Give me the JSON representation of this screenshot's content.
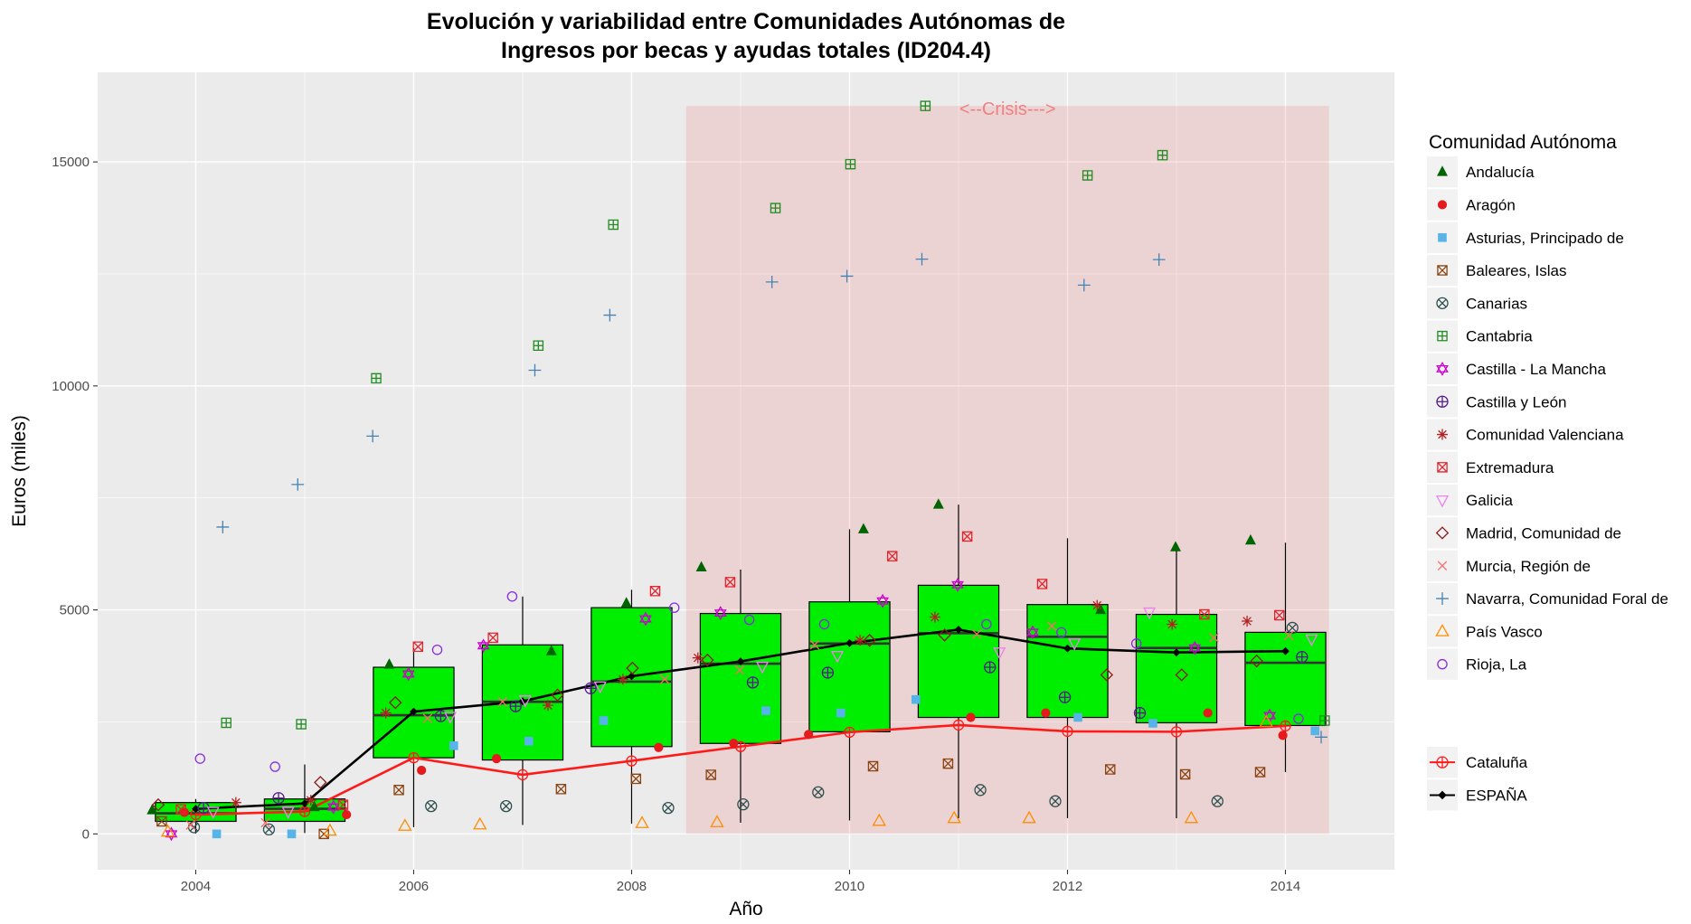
{
  "chart_data": {
    "type": "box",
    "title_line1": "Evolución y variabilidad entre Comunidades Autónomas de",
    "title_line2": "Ingresos por becas y ayudas totales (ID204.4)",
    "xlabel": "Año",
    "ylabel": "Euros (miles)",
    "xlim": [
      2003.1,
      2015.0
    ],
    "ylim": [
      -800,
      17000
    ],
    "x_ticks": [
      "2004",
      "2006",
      "2008",
      "2010",
      "2012",
      "2014"
    ],
    "y_ticks": [
      "0",
      "5000",
      "10000",
      "15000"
    ],
    "grid": true,
    "crisis": {
      "label": "<--Crisis--->",
      "x_start": 2008.5,
      "x_end": 2014.4,
      "y_max": 16250,
      "color": "#f08080"
    },
    "years": [
      2004,
      2005,
      2006,
      2007,
      2008,
      2009,
      2010,
      2011,
      2012,
      2013,
      2014
    ],
    "boxes": [
      {
        "year": 2004,
        "q1": 280,
        "median": 460,
        "q3": 700,
        "whisker_low": 10,
        "whisker_high": 780
      },
      {
        "year": 2005,
        "q1": 280,
        "median": 560,
        "q3": 780,
        "whisker_low": 20,
        "whisker_high": 1550
      },
      {
        "year": 2006,
        "q1": 1700,
        "median": 2650,
        "q3": 3720,
        "whisker_low": 150,
        "whisker_high": 4150
      },
      {
        "year": 2007,
        "q1": 1650,
        "median": 2950,
        "q3": 4220,
        "whisker_low": 200,
        "whisker_high": 5300
      },
      {
        "year": 2008,
        "q1": 1950,
        "median": 3400,
        "q3": 5050,
        "whisker_low": 230,
        "whisker_high": 5450
      },
      {
        "year": 2009,
        "q1": 2020,
        "median": 3800,
        "q3": 4920,
        "whisker_low": 250,
        "whisker_high": 5900
      },
      {
        "year": 2010,
        "q1": 2280,
        "median": 4250,
        "q3": 5180,
        "whisker_low": 300,
        "whisker_high": 6800
      },
      {
        "year": 2011,
        "q1": 2600,
        "median": 4480,
        "q3": 5550,
        "whisker_low": 350,
        "whisker_high": 7350
      },
      {
        "year": 2012,
        "q1": 2600,
        "median": 4400,
        "q3": 5120,
        "whisker_low": 350,
        "whisker_high": 6600
      },
      {
        "year": 2013,
        "q1": 2480,
        "median": 4150,
        "q3": 4900,
        "whisker_low": 350,
        "whisker_high": 6400
      },
      {
        "year": 2014,
        "q1": 2420,
        "median": 3820,
        "q3": 4500,
        "whisker_low": 1380,
        "whisker_high": 6500
      }
    ],
    "series": [
      {
        "name": "Andalucía",
        "shape": "triangle-filled",
        "color": "#006400",
        "values": [
          530,
          600,
          3780,
          4080,
          5150,
          5950,
          6800,
          7350,
          5000,
          6400,
          6550
        ]
      },
      {
        "name": "Aragón",
        "shape": "dot",
        "color": "#e41a1c",
        "values": [
          480,
          430,
          1420,
          1680,
          1930,
          2020,
          2220,
          2600,
          2700,
          2700,
          2200
        ]
      },
      {
        "name": "Asturias, Principado de",
        "shape": "square",
        "color": "#56b4e9",
        "values": [
          0,
          0,
          1970,
          2070,
          2530,
          2750,
          2700,
          3000,
          2600,
          2470,
          2300
        ]
      },
      {
        "name": "Baleares, Islas",
        "shape": "square-x",
        "color": "#8b4513",
        "values": [
          280,
          0,
          980,
          1000,
          1230,
          1320,
          1510,
          1570,
          1440,
          1330,
          1380
        ]
      },
      {
        "name": "Canarias",
        "shape": "circle-x",
        "color": "#2f4f4f",
        "values": [
          150,
          100,
          620,
          620,
          580,
          660,
          930,
          980,
          730,
          730,
          4600
        ]
      },
      {
        "name": "Cantabria",
        "shape": "square-plus",
        "color": "#228b22",
        "values": [
          2480,
          2450,
          10170,
          10900,
          13600,
          13970,
          14950,
          16250,
          14700,
          15150,
          2530
        ]
      },
      {
        "name": "Castilla - La Mancha",
        "shape": "star6",
        "color": "#cc00cc",
        "values": [
          0,
          600,
          3570,
          4200,
          4800,
          4930,
          5200,
          5560,
          4500,
          4150,
          2640
        ]
      },
      {
        "name": "Castilla y León",
        "shape": "circle-plus",
        "color": "#551a8b",
        "values": [
          580,
          800,
          2630,
          2850,
          3250,
          3380,
          3600,
          3720,
          3050,
          2700,
          3950
        ]
      },
      {
        "name": "Comunidad Valenciana",
        "shape": "asterisk",
        "color": "#b22222",
        "values": [
          700,
          750,
          2700,
          2870,
          3450,
          3930,
          4320,
          4840,
          5100,
          4680,
          4750
        ]
      },
      {
        "name": "Extremadura",
        "shape": "square-x",
        "color": "#e3262e",
        "values": [
          550,
          650,
          4180,
          4380,
          5420,
          5620,
          6200,
          6640,
          5580,
          4900,
          4880
        ]
      },
      {
        "name": "Galicia",
        "shape": "triangle-down",
        "color": "#ee82ee",
        "values": [
          500,
          500,
          2620,
          2990,
          3300,
          3740,
          3980,
          4060,
          4260,
          4950,
          4350
        ]
      },
      {
        "name": "Madrid, Comunidad de",
        "shape": "diamond",
        "color": "#8b1a1a",
        "values": [
          650,
          1150,
          2930,
          3100,
          3700,
          3880,
          4320,
          4440,
          3550,
          3550,
          3860
        ]
      },
      {
        "name": "Murcia, Región de",
        "shape": "x",
        "color": "#ff6a6a",
        "values": [
          200,
          250,
          2580,
          2950,
          3450,
          3660,
          4220,
          4460,
          4640,
          4380,
          4430
        ]
      },
      {
        "name": "Navarra, Comunidad Foral de",
        "shape": "plus",
        "color": "#4682b4",
        "values": [
          6850,
          7800,
          8880,
          10350,
          11580,
          12320,
          12450,
          12830,
          12250,
          12820,
          2160
        ]
      },
      {
        "name": "País Vasco",
        "shape": "triangle-open",
        "color": "#ff8c00",
        "values": [
          50,
          70,
          180,
          210,
          240,
          260,
          290,
          350,
          350,
          350,
          2500
        ]
      },
      {
        "name": "Rioja, La",
        "shape": "circle-open",
        "color": "#8a2be2",
        "values": [
          1680,
          1500,
          4110,
          5300,
          5050,
          4780,
          4680,
          4680,
          4500,
          4250,
          2570
        ]
      }
    ],
    "summary_series": [
      {
        "name": "Cataluña",
        "shape": "circle-plus",
        "color": "#ff1a1a",
        "values": [
          430,
          500,
          1700,
          1320,
          1630,
          1950,
          2270,
          2430,
          2290,
          2280,
          2410
        ]
      },
      {
        "name": "ESPAÑA",
        "shape": "diamond-filled",
        "color": "#000000",
        "values": [
          560,
          680,
          2730,
          2960,
          3520,
          3850,
          4260,
          4560,
          4140,
          4050,
          4080
        ]
      }
    ],
    "legend": {
      "title": "Comunidad Autónoma",
      "placement": "right",
      "entries": [
        "Andalucía",
        "Aragón",
        "Asturias, Principado de",
        "Baleares, Islas",
        "Canarias",
        "Cantabria",
        "Castilla - La Mancha",
        "Castilla y León",
        "Comunidad Valenciana",
        "Extremadura",
        "Galicia",
        "Madrid, Comunidad de",
        "Murcia, Región de",
        "Navarra, Comunidad Foral de",
        "País Vasco",
        "Rioja, La"
      ],
      "summary_entries": [
        "Cataluña",
        "ESPAÑA"
      ]
    },
    "colors": {
      "panel_bg": "#ebebeb",
      "grid": "#ffffff",
      "box_fill": "#00ee00",
      "crisis_fill": "#f08080"
    }
  }
}
